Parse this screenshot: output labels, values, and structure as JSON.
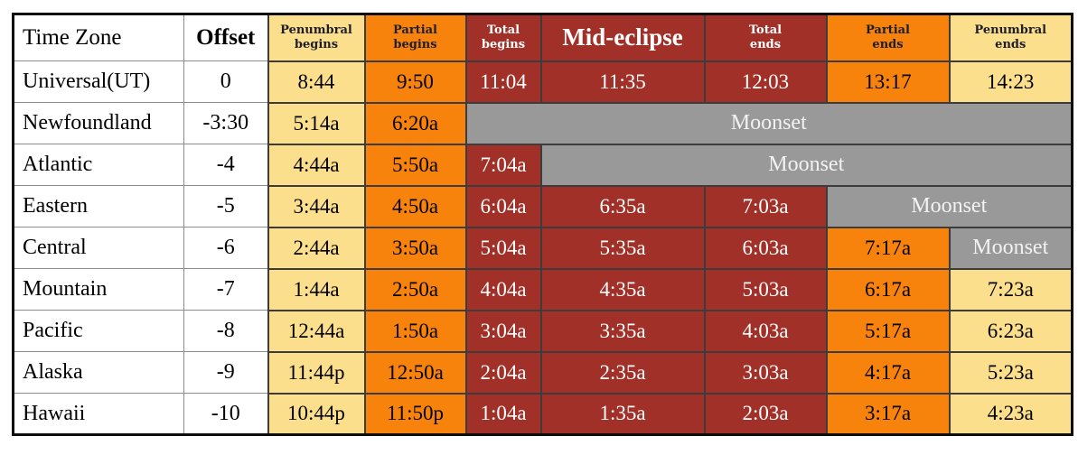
{
  "chart_data": {
    "type": "table",
    "header": {
      "time_zone_label": "Time Zone",
      "offset_label": "Offset",
      "phase_columns": [
        {
          "key": "penumbral-begins",
          "lines": [
            "Penumbral",
            "begins"
          ],
          "tone": "yellow"
        },
        {
          "key": "partial-begins",
          "lines": [
            "Partial",
            "begins"
          ],
          "tone": "orange"
        },
        {
          "key": "total-begins",
          "lines": [
            "Total",
            "begins"
          ],
          "tone": "red"
        },
        {
          "key": "mid-eclipse",
          "lines": [
            "Mid-eclipse"
          ],
          "tone": "red",
          "emphasis": true
        },
        {
          "key": "total-ends",
          "lines": [
            "Total",
            "ends"
          ],
          "tone": "red"
        },
        {
          "key": "partial-ends",
          "lines": [
            "Partial",
            "ends"
          ],
          "tone": "orange"
        },
        {
          "key": "penumbral-ends",
          "lines": [
            "Penumbral",
            "ends"
          ],
          "tone": "yellow"
        }
      ]
    },
    "rows": [
      {
        "zone": "Universal(UT)",
        "offset": "0",
        "cells": [
          {
            "text": "8:44",
            "tone": "yellow"
          },
          {
            "text": "9:50",
            "tone": "orange"
          },
          {
            "text": "11:04",
            "tone": "red"
          },
          {
            "text": "11:35",
            "tone": "red"
          },
          {
            "text": "12:03",
            "tone": "red"
          },
          {
            "text": "13:17",
            "tone": "orange"
          },
          {
            "text": "14:23",
            "tone": "yellow"
          }
        ]
      },
      {
        "zone": "Newfoundland",
        "offset": "-3:30",
        "cells": [
          {
            "text": "5:14a",
            "tone": "yellow"
          },
          {
            "text": "6:20a",
            "tone": "orange"
          },
          {
            "text": "Moonset",
            "tone": "gray",
            "colspan": 5
          }
        ]
      },
      {
        "zone": "Atlantic",
        "offset": "-4",
        "cells": [
          {
            "text": "4:44a",
            "tone": "yellow"
          },
          {
            "text": "5:50a",
            "tone": "orange"
          },
          {
            "text": "7:04a",
            "tone": "red"
          },
          {
            "text": "Moonset",
            "tone": "gray",
            "colspan": 4
          }
        ]
      },
      {
        "zone": "Eastern",
        "offset": "-5",
        "cells": [
          {
            "text": "3:44a",
            "tone": "yellow"
          },
          {
            "text": "4:50a",
            "tone": "orange"
          },
          {
            "text": "6:04a",
            "tone": "red"
          },
          {
            "text": "6:35a",
            "tone": "red"
          },
          {
            "text": "7:03a",
            "tone": "red"
          },
          {
            "text": "Moonset",
            "tone": "gray",
            "colspan": 2
          }
        ]
      },
      {
        "zone": "Central",
        "offset": "-6",
        "cells": [
          {
            "text": "2:44a",
            "tone": "yellow"
          },
          {
            "text": "3:50a",
            "tone": "orange"
          },
          {
            "text": "5:04a",
            "tone": "red"
          },
          {
            "text": "5:35a",
            "tone": "red"
          },
          {
            "text": "6:03a",
            "tone": "red"
          },
          {
            "text": "7:17a",
            "tone": "orange"
          },
          {
            "text": "Moonset",
            "tone": "gray"
          }
        ]
      },
      {
        "zone": "Mountain",
        "offset": "-7",
        "cells": [
          {
            "text": "1:44a",
            "tone": "yellow"
          },
          {
            "text": "2:50a",
            "tone": "orange"
          },
          {
            "text": "4:04a",
            "tone": "red"
          },
          {
            "text": "4:35a",
            "tone": "red"
          },
          {
            "text": "5:03a",
            "tone": "red"
          },
          {
            "text": "6:17a",
            "tone": "orange"
          },
          {
            "text": "7:23a",
            "tone": "yellow"
          }
        ]
      },
      {
        "zone": "Pacific",
        "offset": "-8",
        "cells": [
          {
            "text": "12:44a",
            "tone": "yellow"
          },
          {
            "text": "1:50a",
            "tone": "orange"
          },
          {
            "text": "3:04a",
            "tone": "red"
          },
          {
            "text": "3:35a",
            "tone": "red"
          },
          {
            "text": "4:03a",
            "tone": "red"
          },
          {
            "text": "5:17a",
            "tone": "orange"
          },
          {
            "text": "6:23a",
            "tone": "yellow"
          }
        ]
      },
      {
        "zone": "Alaska",
        "offset": "-9",
        "cells": [
          {
            "text": "11:44p",
            "tone": "yellow"
          },
          {
            "text": "12:50a",
            "tone": "orange"
          },
          {
            "text": "2:04a",
            "tone": "red"
          },
          {
            "text": "2:35a",
            "tone": "red"
          },
          {
            "text": "3:03a",
            "tone": "red"
          },
          {
            "text": "4:17a",
            "tone": "orange"
          },
          {
            "text": "5:23a",
            "tone": "yellow"
          }
        ]
      },
      {
        "zone": "Hawaii",
        "offset": "-10",
        "cells": [
          {
            "text": "10:44p",
            "tone": "yellow"
          },
          {
            "text": "11:50p",
            "tone": "orange"
          },
          {
            "text": "1:04a",
            "tone": "red"
          },
          {
            "text": "1:35a",
            "tone": "red"
          },
          {
            "text": "2:03a",
            "tone": "red"
          },
          {
            "text": "3:17a",
            "tone": "orange"
          },
          {
            "text": "4:23a",
            "tone": "yellow"
          }
        ]
      }
    ],
    "colors": {
      "penumbral_yellow": "#fbdf8d",
      "partial_orange": "#f7830d",
      "total_dark_red": "#a13028",
      "moonset_gray": "#999999",
      "header_dark_text": "#1e1e2b"
    }
  }
}
